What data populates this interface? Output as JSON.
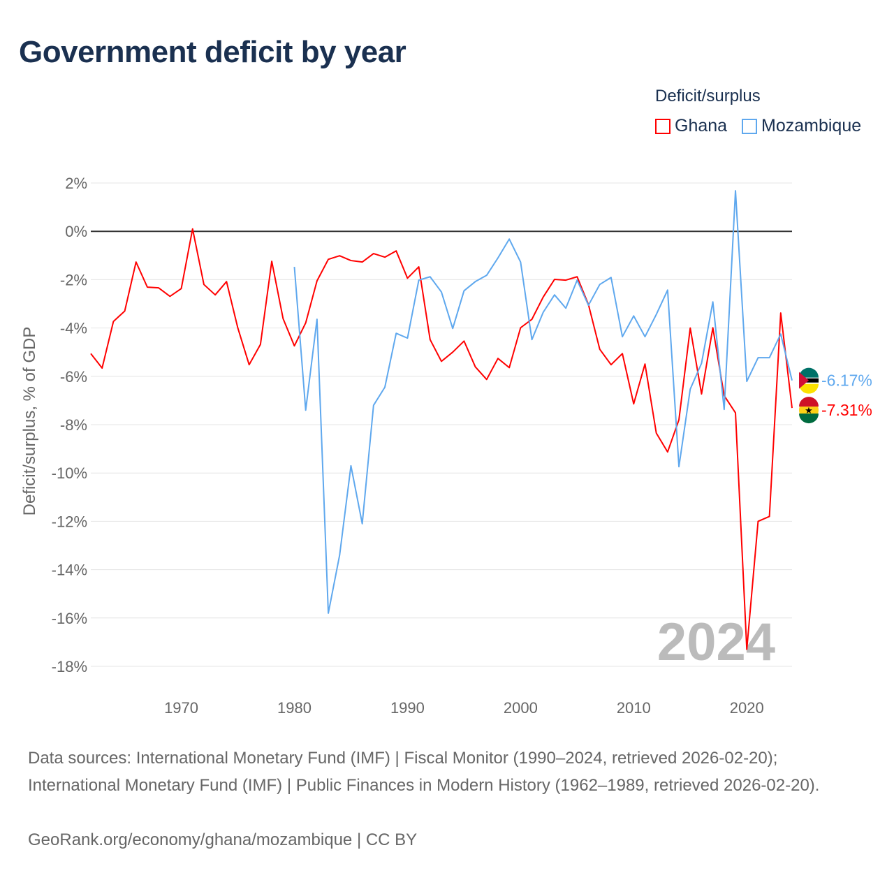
{
  "title": "Government deficit by year",
  "legend": {
    "title": "Deficit/surplus",
    "items": [
      {
        "label": "Ghana",
        "color": "#ff0000"
      },
      {
        "label": "Mozambique",
        "color": "#5fa8ee"
      }
    ]
  },
  "watermark_year": "2024",
  "footer": {
    "sources": "Data sources: International Monetary Fund (IMF) | Fiscal Monitor (1990–2024, retrieved 2026-02-20); International Monetary Fund (IMF) | Public Finances in Modern History (1962–1989, retrieved 2026-02-20).",
    "credit": "GeoRank.org/economy/ghana/mozambique | CC BY"
  },
  "chart_data": {
    "type": "line",
    "title": "Government deficit by year",
    "xlabel": "",
    "ylabel": "Deficit/surplus, % of GDP",
    "xlim": [
      1962,
      2024
    ],
    "ylim": [
      -18,
      2
    ],
    "xticks": [
      1970,
      1980,
      1990,
      2000,
      2010,
      2020
    ],
    "yticks": [
      2,
      0,
      -2,
      -4,
      -6,
      -8,
      -10,
      -12,
      -14,
      -16,
      -18
    ],
    "ytick_labels": [
      "2%",
      "0%",
      "-2%",
      "-4%",
      "-6%",
      "-8%",
      "-10%",
      "-12%",
      "-14%",
      "-16%",
      "-18%"
    ],
    "grid": true,
    "legend_position": "top-right",
    "series": [
      {
        "name": "Ghana",
        "color": "#ff0000",
        "start_year": 1962,
        "end_label": "-7.31%",
        "values": [
          -5.06,
          -5.66,
          -3.73,
          -3.3,
          -1.27,
          -2.31,
          -2.34,
          -2.69,
          -2.37,
          0.1,
          -2.2,
          -2.63,
          -2.08,
          -4.0,
          -5.52,
          -4.68,
          -1.24,
          -3.61,
          -4.74,
          -3.79,
          -2.05,
          -1.16,
          -1.01,
          -1.21,
          -1.27,
          -0.92,
          -1.07,
          -0.81,
          -1.94,
          -1.47,
          -4.48,
          -5.38,
          -5.0,
          -4.54,
          -5.61,
          -6.13,
          -5.26,
          -5.64,
          -3.99,
          -3.64,
          -2.72,
          -1.99,
          -2.02,
          -1.88,
          -3.03,
          -4.88,
          -5.52,
          -5.06,
          -7.14,
          -5.49,
          -8.35,
          -9.13,
          -7.8,
          -4.0,
          -6.73,
          -3.99,
          -6.8,
          -7.51,
          -17.3,
          -12.0,
          -11.8,
          -3.38,
          -7.31
        ]
      },
      {
        "name": "Mozambique",
        "color": "#5fa8ee",
        "start_year": 1980,
        "end_label": "-6.17%",
        "values": [
          -1.47,
          -7.4,
          -3.64,
          -15.8,
          -13.4,
          -9.7,
          -12.1,
          -7.2,
          -6.45,
          -4.22,
          -4.42,
          -2.02,
          -1.88,
          -2.51,
          -4.02,
          -2.46,
          -2.08,
          -1.82,
          -1.1,
          -0.32,
          -1.27,
          -4.48,
          -3.35,
          -2.63,
          -3.18,
          -2.02,
          -3.06,
          -2.2,
          -1.91,
          -4.36,
          -3.5,
          -4.36,
          -3.44,
          -2.43,
          -9.74,
          -6.53,
          -5.46,
          -2.92,
          -7.37,
          1.68,
          -6.21,
          -5.23,
          -5.23,
          -4.25,
          -6.17
        ]
      }
    ]
  }
}
